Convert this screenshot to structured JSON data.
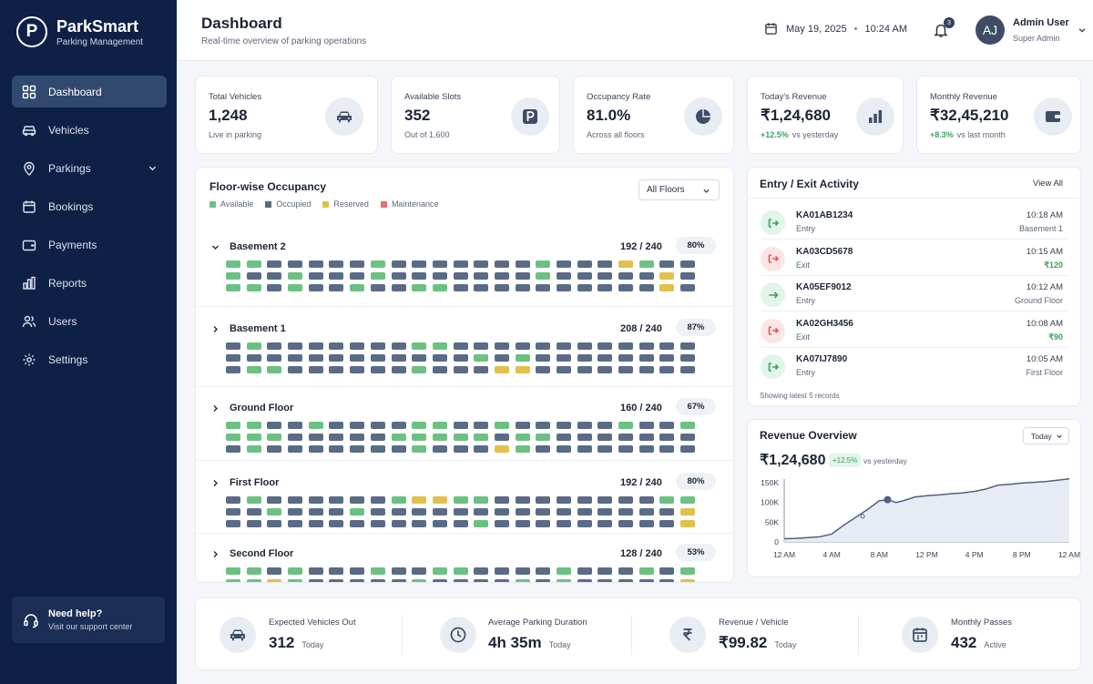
{
  "brand": {
    "logo_letter": "P",
    "name": "ParkSmart",
    "subtitle": "Parking Management"
  },
  "sidebar": {
    "items": [
      {
        "label": "Dashboard",
        "icon": "grid-icon",
        "active": true
      },
      {
        "label": "Vehicles",
        "icon": "car-icon"
      },
      {
        "label": "Parkings",
        "icon": "location-pin-icon",
        "has_submenu": true
      },
      {
        "label": "Bookings",
        "icon": "calendar-icon"
      },
      {
        "label": "Payments",
        "icon": "wallet-icon"
      },
      {
        "label": "Reports",
        "icon": "bar-chart-icon"
      },
      {
        "label": "Users",
        "icon": "users-icon"
      },
      {
        "label": "Settings",
        "icon": "gear-icon"
      }
    ],
    "help": {
      "title": "Need help?",
      "subtitle": "Visit our support center"
    }
  },
  "header": {
    "title": "Dashboard",
    "subtitle": "Real-time overview of parking operations",
    "date": "May 19, 2025",
    "separator": "•",
    "time": "10:24 AM",
    "notifications": "3",
    "user": {
      "initials": "AJ",
      "name": "Admin User",
      "role": "Super Admin"
    }
  },
  "stats": [
    {
      "label": "Total Vehicles",
      "value": "1,248",
      "sub": "Live in parking",
      "icon": "car-icon"
    },
    {
      "label": "Available Slots",
      "value": "352",
      "sub": "Out of 1,600",
      "icon": "parking-icon"
    },
    {
      "label": "Occupancy Rate",
      "value": "81.0%",
      "sub": "Across all floors",
      "icon": "pie-chart-icon"
    },
    {
      "label": "Today's Revenue",
      "value": "₹1,24,680",
      "change": "+12.5%",
      "sub": "vs yesterday",
      "icon": "bar-chart-icon"
    },
    {
      "label": "Monthly Revenue",
      "value": "₹32,45,210",
      "change": "+8.3%",
      "sub": "vs last month",
      "icon": "wallet-icon"
    }
  ],
  "occupancy": {
    "title": "Floor-wise Occupancy",
    "filter": "All Floors",
    "legend": [
      {
        "label": "Available",
        "color": "#6cc182"
      },
      {
        "label": "Occupied",
        "color": "#5a6b86"
      },
      {
        "label": "Reserved",
        "color": "#e2c04c"
      },
      {
        "label": "Maintenance",
        "color": "#e36f6f"
      }
    ],
    "floors": [
      {
        "name": "Basement 2",
        "count": "192 / 240",
        "pct": "80%",
        "expanded": true,
        "rows": [
          "AAOOOOOAOOOOOOOAOOORAOO",
          "AOOAOOOAOOOOOOOAOOOOORO",
          "AAOAOOAOOAAOOOOOOOOOORO"
        ]
      },
      {
        "name": "Basement 1",
        "count": "208 / 240",
        "pct": "87%",
        "expanded": false,
        "rows": [
          "OAOOOOOOOAAOOOOOOOOOOOO",
          "OOOOOOOOOOOOAOAOOOOOOOO",
          "OAAOOOOOOAOOORROOOOOOOO"
        ]
      },
      {
        "name": "Ground Floor",
        "count": "160 / 240",
        "pct": "67%",
        "expanded": false,
        "rows": [
          "AAOOAOOOOAAOOAOOOOOAOOA",
          "AAAOOOOOAAAAAOAAOOOOOOO",
          "OAOOOOOOOAOOORAOOOOOOOO"
        ]
      },
      {
        "name": "First Floor",
        "count": "192 / 240",
        "pct": "80%",
        "expanded": false,
        "rows": [
          "OAOOOOOOARRAAOOOOOOOOAA",
          "OOAOOOAOOOOOOOOOOOOOOOR",
          "OOOOOOOOOOOOAOOOOOOOOOR"
        ]
      },
      {
        "name": "Second Floor",
        "count": "128 / 240",
        "pct": "53%",
        "expanded": false,
        "rows": [
          "AAOAOOOAOOAAOOOOAOOOAOA",
          "AARAOOOOOAOOOOAOAOOOOOR"
        ]
      }
    ]
  },
  "activity": {
    "title": "Entry / Exit Activity",
    "view_all": "View All",
    "items": [
      {
        "plate": "KA01AB1234",
        "type": "Entry",
        "time": "10:18 AM",
        "detail": "Basement 1",
        "dir": "in"
      },
      {
        "plate": "KA03CD5678",
        "type": "Exit",
        "time": "10:15 AM",
        "detail": "₹120",
        "dir": "out"
      },
      {
        "plate": "KA05EF9012",
        "type": "Entry",
        "time": "10:12 AM",
        "detail": "Ground Floor",
        "dir": "in"
      },
      {
        "plate": "KA02GH3456",
        "type": "Exit",
        "time": "10:08 AM",
        "detail": "₹90",
        "dir": "out"
      },
      {
        "plate": "KA07IJ7890",
        "type": "Entry",
        "time": "10:05 AM",
        "detail": "First Floor",
        "dir": "in"
      }
    ],
    "footer": "Showing latest 5 records"
  },
  "revenue": {
    "title": "Revenue Overview",
    "filter": "Today",
    "value": "₹1,24,680",
    "change": "+12.5%",
    "change_label": "vs yesterday"
  },
  "chart_data": {
    "type": "line",
    "title": "Revenue Overview",
    "x": [
      "12 AM",
      "4 AM",
      "8 AM",
      "12 PM",
      "4 PM",
      "8 PM",
      "12 AM"
    ],
    "y_ticks": [
      "0",
      "50K",
      "100K",
      "150K"
    ],
    "ylim": [
      0,
      150000
    ],
    "series": [
      {
        "values": [
          [
            0,
            8000
          ],
          [
            1,
            9000
          ],
          [
            2,
            11000
          ],
          [
            3,
            13000
          ],
          [
            4,
            20000
          ],
          [
            5,
            42000
          ],
          [
            6,
            62000
          ],
          [
            7,
            82000
          ],
          [
            8,
            104000
          ],
          [
            8.7,
            107000
          ],
          [
            9.4,
            100000
          ],
          [
            10,
            104000
          ],
          [
            11,
            114000
          ],
          [
            12,
            117000
          ],
          [
            13,
            119000
          ],
          [
            14,
            122000
          ],
          [
            15,
            124000
          ],
          [
            16,
            128000
          ],
          [
            17,
            134000
          ],
          [
            18,
            144000
          ],
          [
            19,
            146000
          ],
          [
            20,
            149000
          ],
          [
            22,
            153000
          ],
          [
            24,
            160000
          ]
        ]
      }
    ],
    "highlight": {
      "x": 8.7,
      "y": 107000
    },
    "grid": false,
    "legend": "none"
  },
  "bottom": [
    {
      "label": "Expected Vehicles Out",
      "value": "312",
      "unit": "Today",
      "icon": "car-icon"
    },
    {
      "label": "Average Parking Duration",
      "value": "4h 35m",
      "unit": "Today",
      "icon": "clock-icon"
    },
    {
      "label": "Revenue / Vehicle",
      "value": "₹99.82",
      "unit": "Today",
      "icon": "rupee-icon"
    },
    {
      "label": "Monthly Passes",
      "value": "432",
      "unit": "Active",
      "icon": "calendar-icon"
    }
  ]
}
